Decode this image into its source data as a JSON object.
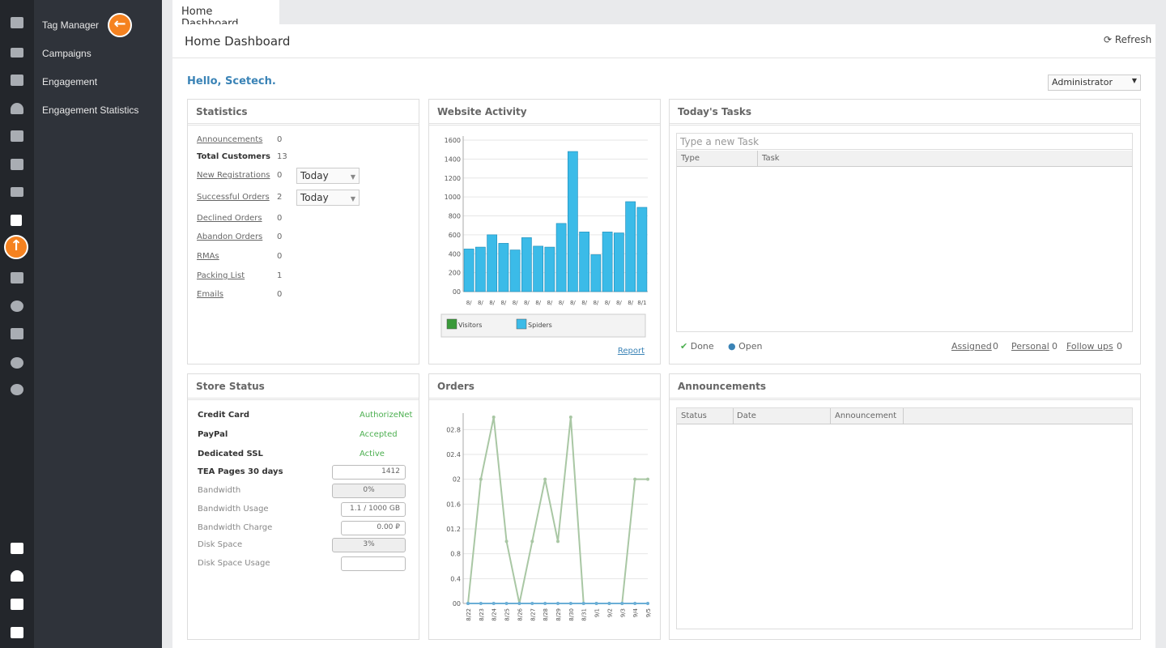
{
  "sidebar": {
    "menu": [
      "Tag Manager",
      "Campaigns",
      "Engagement",
      "Engagement Statistics"
    ]
  },
  "tab": "Home Dashboard",
  "header": {
    "title": "Home Dashboard",
    "refresh": "Refresh"
  },
  "greeting": "Hello, Scetech.",
  "role_select": "Administrator",
  "statistics": {
    "title": "Statistics",
    "rows": [
      {
        "label": "Announcements",
        "value": 0
      },
      {
        "label": "Total Customers",
        "value": 13
      },
      {
        "label": "New Registrations",
        "value": 0,
        "select": "Today"
      },
      {
        "label": "Successful Orders",
        "value": 2,
        "select": "Today"
      },
      {
        "label": "Declined Orders",
        "value": 0
      },
      {
        "label": "Abandon Orders",
        "value": 0
      },
      {
        "label": "RMAs",
        "value": 0
      },
      {
        "label": "Packing List",
        "value": 1
      },
      {
        "label": "Emails",
        "value": 0
      }
    ]
  },
  "chart_data": [
    {
      "type": "bar",
      "title": "Website Activity",
      "categories": [
        "8/",
        "8/",
        "8/",
        "8/",
        "8/",
        "8/",
        "8/",
        "8/",
        "8/",
        "8/",
        "8/",
        "8/",
        "8/",
        "8/",
        "8/",
        "8/1"
      ],
      "series": [
        {
          "name": "Visitors",
          "color": "#3a9a3a",
          "values": [
            0,
            0,
            0,
            0,
            0,
            0,
            0,
            0,
            0,
            0,
            0,
            0,
            0,
            0,
            0,
            0
          ]
        },
        {
          "name": "Spiders",
          "color": "#3bbbe8",
          "values": [
            450,
            470,
            600,
            510,
            440,
            570,
            480,
            470,
            720,
            1480,
            630,
            390,
            630,
            620,
            950,
            890
          ]
        }
      ],
      "ylim": [
        0,
        1600
      ],
      "yticks": [
        {
          "value": 0,
          "label": "00"
        },
        200,
        400,
        600,
        800,
        1000,
        1200,
        1400,
        1600
      ],
      "grid": true,
      "link": "Report"
    },
    {
      "type": "line",
      "title": "Orders",
      "categories": [
        "8/22",
        "8/23",
        "8/24",
        "8/25",
        "8/26",
        "8/27",
        "8/28",
        "8/29",
        "8/30",
        "8/31",
        "9/1",
        "9/2",
        "9/3",
        "9/4",
        "9/5"
      ],
      "series": [
        {
          "color": "#a9c7a4",
          "values": [
            0,
            2,
            3,
            1,
            0,
            1,
            2,
            1,
            3,
            0,
            0,
            0,
            0,
            2,
            2
          ]
        },
        {
          "color": "#6aaed6",
          "values": [
            0,
            0,
            0,
            0,
            0,
            0,
            0,
            0,
            0,
            0,
            0,
            0,
            0,
            0,
            0
          ]
        }
      ],
      "ylim": [
        0,
        3
      ],
      "yticks": [
        {
          "value": 0,
          "label": "00"
        },
        0.4,
        0.8,
        {
          "value": 1.2,
          "label": "01.2"
        },
        {
          "value": 1.6,
          "label": "01.6"
        },
        {
          "value": 2,
          "label": "02"
        },
        {
          "value": 2.4,
          "label": "02.4"
        },
        {
          "value": 2.8,
          "label": "02.8"
        }
      ],
      "grid": true
    }
  ],
  "tasks": {
    "title": "Today's Tasks",
    "placeholder": "Type a new Task",
    "columns": [
      "Type",
      "Task"
    ],
    "legend": [
      "Done",
      "Open"
    ],
    "counts": [
      {
        "label": "Assigned",
        "value": 0
      },
      {
        "label": "Personal",
        "value": 0
      },
      {
        "label": "Follow ups",
        "value": 0
      }
    ]
  },
  "store_status": {
    "title": "Store Status",
    "rows": [
      {
        "label": "Credit Card",
        "value": "AuthorizeNet"
      },
      {
        "label": "PayPal",
        "value": "Accepted"
      },
      {
        "label": "Dedicated SSL",
        "value": "Active"
      },
      {
        "label": "TEA Pages 30 days",
        "value": "1412"
      },
      {
        "label": "Bandwidth",
        "value": "0%"
      },
      {
        "label": "Bandwidth Usage",
        "value": "1.1 / 1000 GB"
      },
      {
        "label": "Bandwidth Charge",
        "value": "0.00 ₽"
      },
      {
        "label": "Disk Space",
        "value": "3%"
      },
      {
        "label": "Disk Space Usage"
      }
    ]
  },
  "announcements": {
    "title": "Announcements",
    "columns": [
      "Status",
      "Date",
      "Announcement"
    ]
  }
}
